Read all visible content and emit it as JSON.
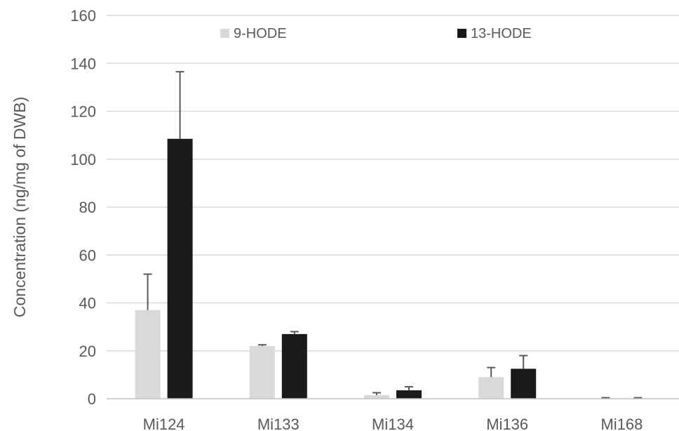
{
  "chart_data": {
    "type": "bar",
    "ylabel": "Concentration (ng/mg of DWB)",
    "xlabel": "",
    "ylim": [
      0,
      160
    ],
    "yticks": [
      0,
      20,
      40,
      60,
      80,
      100,
      120,
      140,
      160
    ],
    "grid": true,
    "legend_position": "top",
    "categories": [
      "Mi124",
      "Mi133",
      "Mi134",
      "Mi136",
      "Mi168"
    ],
    "series": [
      {
        "name": "9-HODE",
        "color": "#d9d9d9",
        "values": [
          37,
          22,
          1.5,
          9,
          0.1
        ],
        "error": [
          15,
          0.5,
          1,
          4,
          0.3
        ]
      },
      {
        "name": "13-HODE",
        "color": "#1a1a1a",
        "values": [
          108.5,
          27,
          3.5,
          12.5,
          0.1
        ],
        "error": [
          28,
          1,
          1.5,
          5.5,
          0.3
        ]
      }
    ]
  }
}
